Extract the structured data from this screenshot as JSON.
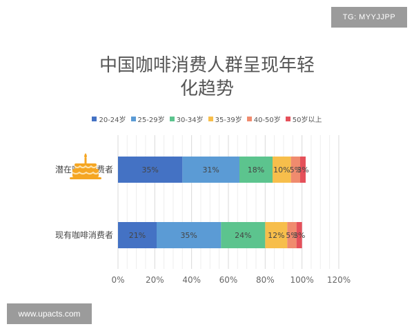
{
  "tag": "TG: MYYJJPP",
  "watermark": "www.upacts.com",
  "chart_data": {
    "type": "bar",
    "orientation": "horizontal",
    "stacked": true,
    "title_lines": [
      "中国咖啡消费人群呈现年轻",
      "化趋势"
    ],
    "categories": [
      "潜在咖啡消费者",
      "现有咖啡消费者"
    ],
    "series": [
      {
        "name": "20-24岁",
        "color": "#4472c4",
        "values": [
          35,
          21
        ],
        "labels": [
          "35%",
          "21%"
        ]
      },
      {
        "name": "25-29岁",
        "color": "#5b9bd5",
        "values": [
          31,
          35
        ],
        "labels": [
          "31%",
          "35%"
        ]
      },
      {
        "name": "30-34岁",
        "color": "#5cc48e",
        "values": [
          18,
          24
        ],
        "labels": [
          "18%",
          "24%"
        ]
      },
      {
        "name": "35-39岁",
        "color": "#f7be4b",
        "values": [
          10,
          12
        ],
        "labels": [
          "10%",
          "12%"
        ]
      },
      {
        "name": "40-50岁",
        "color": "#f08b6e",
        "values": [
          5,
          5
        ],
        "labels": [
          "5%",
          "5%"
        ]
      },
      {
        "name": "50岁以上",
        "color": "#e5505a",
        "values": [
          3,
          3
        ],
        "labels": [
          "3%",
          "3%"
        ]
      }
    ],
    "xlim": [
      0,
      120
    ],
    "xticks": [
      "0%",
      "20%",
      "40%",
      "60%",
      "80%",
      "100%",
      "120%"
    ],
    "grid": true,
    "legend_position": "top"
  }
}
